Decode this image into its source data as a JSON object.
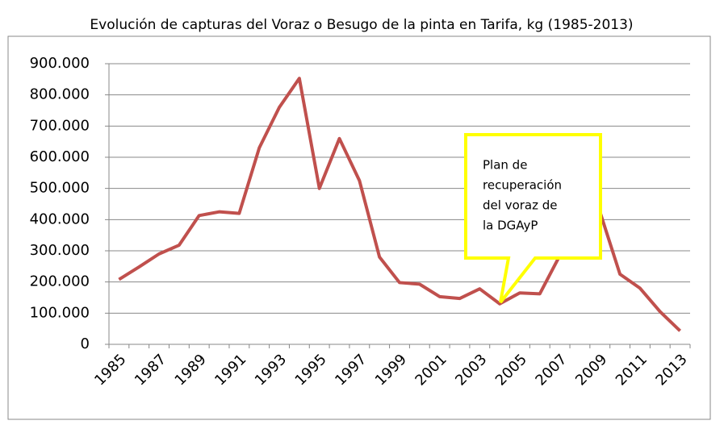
{
  "chart_data": {
    "type": "line",
    "title": "Evolución de capturas del Voraz o Besugo de la pinta en Tarifa, kg (1985-2013)",
    "categories": [
      "1985",
      null,
      "1987",
      null,
      "1989",
      null,
      "1991",
      null,
      "1993",
      null,
      "1995",
      null,
      "1997",
      null,
      "1999",
      null,
      "2001",
      null,
      "2003",
      null,
      "2005",
      null,
      "2007",
      null,
      "2009",
      null,
      "2011",
      null,
      "2013"
    ],
    "series": [
      {
        "color": "#c0504d",
        "values": [
          208000,
          248000,
          290000,
          318000,
          413000,
          425000,
          420000,
          630000,
          760000,
          853000,
          500000,
          660000,
          525000,
          280000,
          198000,
          193000,
          153000,
          147000,
          178000,
          130000,
          165000,
          162000,
          285000,
          430000,
          425000,
          225000,
          180000,
          105000,
          43000
        ]
      }
    ],
    "ylim": [
      0,
      900000
    ],
    "yticks": [
      0,
      {
        "value": 100000,
        "label": "100.000"
      },
      {
        "value": 200000,
        "label": "200.000"
      },
      {
        "value": 300000,
        "label": "300.000"
      },
      {
        "value": 400000,
        "label": "400.000"
      },
      {
        "value": 500000,
        "label": "500.000"
      },
      {
        "value": 600000,
        "label": "600.000"
      },
      {
        "value": 700000,
        "label": "700.000"
      },
      {
        "value": 800000,
        "label": "800.000"
      },
      {
        "value": 900000,
        "label": "900.000"
      }
    ],
    "grid": true,
    "annotation": {
      "lines": [
        "Plan de",
        "recuperación",
        "del voraz de",
        "la DGAyP"
      ],
      "color": "#ffff00"
    }
  }
}
